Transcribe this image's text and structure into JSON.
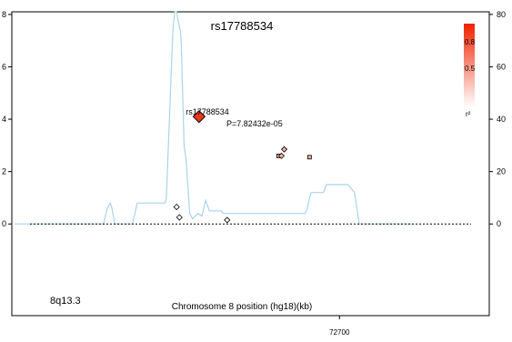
{
  "chart_data": {
    "type": "scatter",
    "title": "rs17788534",
    "region_label": "8q13.3",
    "xlabel": "Chromosome 8 position  (hg18)(kb)",
    "xlim": [
      72350,
      72860
    ],
    "x_ticks": [
      "72700"
    ],
    "ylim": [
      -3.5,
      8.1
    ],
    "y_ticks_left": [
      "8",
      "6",
      "4",
      "2",
      "0"
    ],
    "ylim_right": [
      -35,
      81
    ],
    "y_ticks_right": [
      "80",
      "60",
      "40",
      "20",
      "0"
    ],
    "baseline_y": 0,
    "lead_snp": {
      "name": "rs17788534",
      "x": 72550,
      "y": 4.1,
      "pvalue_label": "P=7.82432e-05"
    },
    "snps": [
      {
        "x": 72526,
        "y": 0.65,
        "r2": 0.0
      },
      {
        "x": 72529,
        "y": 0.25,
        "r2": 0.0
      },
      {
        "x": 72580,
        "y": 0.15,
        "r2": 0.0
      },
      {
        "x": 72635,
        "y": 2.6,
        "r2": 0.3
      },
      {
        "x": 72638,
        "y": 2.6,
        "r2": 0.3
      },
      {
        "x": 72641,
        "y": 2.85,
        "r2": 0.3
      },
      {
        "x": 72668,
        "y": 2.55,
        "r2": 0.3
      }
    ],
    "recombination_rate": {
      "x": [
        72353,
        72448,
        72452,
        72455,
        72457,
        72460,
        72479,
        72484,
        72514,
        72515,
        72522,
        72524,
        72526,
        72527,
        72528,
        72530,
        72531,
        72534,
        72536,
        72538,
        72540,
        72543,
        72549,
        72553,
        72557,
        72561,
        72574,
        72576,
        72620,
        72663,
        72665,
        72668,
        72670,
        72683,
        72686,
        72709,
        72716,
        72719,
        72721,
        72723,
        72779
      ],
      "y": [
        0.0,
        0.0,
        0.6,
        0.8,
        0.6,
        0.0,
        0.0,
        0.8,
        0.8,
        1.0,
        7.4,
        8.1,
        8.1,
        7.9,
        7.7,
        7.4,
        6.9,
        3.0,
        2.5,
        1.5,
        0.4,
        0.2,
        0.4,
        0.3,
        0.9,
        0.5,
        0.5,
        0.4,
        0.4,
        0.4,
        0.5,
        1.0,
        1.2,
        1.2,
        1.5,
        1.5,
        1.2,
        0.5,
        0.0,
        0.0,
        0.0
      ]
    },
    "legend": {
      "title": "r²",
      "ticks": [
        "0.8",
        "0.5"
      ],
      "color_high": "#ee2200",
      "color_low": "#ffffff"
    },
    "colors": {
      "recomb_line": "#a9d3ef",
      "lead_fill": "#e8381c",
      "snp_fill_low": "#ffffff",
      "snp_fill_mid": "#f4b0a0",
      "axis": "#000000"
    }
  }
}
